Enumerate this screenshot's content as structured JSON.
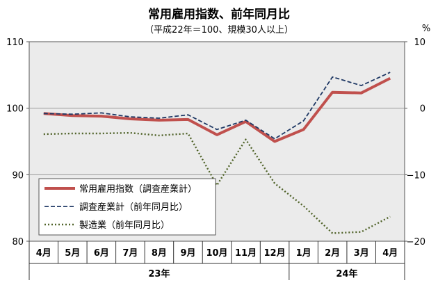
{
  "chart_data": {
    "type": "line",
    "title": "常用雇用指数、前年同月比",
    "subtitle": "（平成22年＝100、規模30人以上）",
    "categories": [
      "4月",
      "5月",
      "6月",
      "7月",
      "8月",
      "9月",
      "10月",
      "11月",
      "12月",
      "1月",
      "2月",
      "3月",
      "4月"
    ],
    "year_groups": [
      {
        "label": "23年",
        "from": 0,
        "to": 8
      },
      {
        "label": "24年",
        "from": 9,
        "to": 12
      }
    ],
    "y_left": {
      "ylim": [
        80,
        110
      ],
      "ticks": [
        "80",
        "90",
        "100",
        "110"
      ]
    },
    "y_right": {
      "unit": "%",
      "ylim": [
        -20,
        10
      ],
      "ticks": [
        "−20",
        "−10",
        "0",
        "10"
      ]
    },
    "grid": "horizontal",
    "legend_position": "bottom-left",
    "series": [
      {
        "name": "常用雇用指数（調査産業計）",
        "axis": "left",
        "style": "solid",
        "color": "#c0504d",
        "values": [
          99.2,
          98.9,
          98.8,
          98.4,
          98.2,
          98.3,
          96.0,
          98.0,
          95.0,
          96.8,
          102.4,
          102.3,
          104.5
        ]
      },
      {
        "name": "調査産業計（前年同月比）",
        "axis": "right",
        "style": "dashed",
        "color": "#1f3864",
        "values": [
          -0.8,
          -0.9,
          -0.7,
          -1.3,
          -1.5,
          -1.0,
          -3.2,
          -1.8,
          -4.6,
          -1.9,
          4.7,
          3.4,
          5.4
        ]
      },
      {
        "name": "製造業（前年同月比）",
        "axis": "right",
        "style": "dotted",
        "color": "#4f6228",
        "values": [
          -3.9,
          -3.8,
          -3.8,
          -3.7,
          -4.1,
          -3.8,
          -11.6,
          -4.7,
          -11.3,
          -14.7,
          -18.8,
          -18.6,
          -16.3
        ]
      }
    ]
  }
}
